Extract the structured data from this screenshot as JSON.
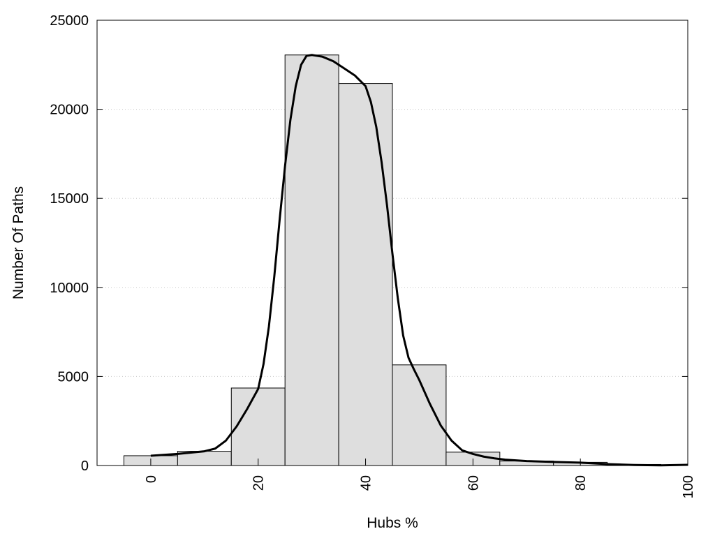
{
  "chart_data": {
    "type": "bar",
    "xlabel": "Hubs %",
    "ylabel": "Number Of Paths",
    "xlim": [
      -10,
      100
    ],
    "ylim": [
      0,
      25000
    ],
    "x_ticks": [
      0,
      20,
      40,
      60,
      80,
      100
    ],
    "y_ticks": [
      0,
      5000,
      10000,
      15000,
      20000,
      25000
    ],
    "grid": "horizontal dotted",
    "bins": [
      {
        "start": -5,
        "end": 5,
        "value": 550
      },
      {
        "start": 5,
        "end": 15,
        "value": 800
      },
      {
        "start": 15,
        "end": 25,
        "value": 4350
      },
      {
        "start": 25,
        "end": 35,
        "value": 23050
      },
      {
        "start": 35,
        "end": 45,
        "value": 21450
      },
      {
        "start": 45,
        "end": 55,
        "value": 5650
      },
      {
        "start": 55,
        "end": 65,
        "value": 750
      },
      {
        "start": 65,
        "end": 75,
        "value": 250
      },
      {
        "start": 75,
        "end": 85,
        "value": 180
      },
      {
        "start": 85,
        "end": 95,
        "value": 60
      },
      {
        "start": 95,
        "end": 105,
        "value": 30
      }
    ],
    "curve": {
      "x": [
        0,
        5,
        10,
        12,
        14,
        16,
        18,
        20,
        21,
        22,
        23,
        24,
        25,
        26,
        27,
        28,
        29,
        30,
        32,
        34,
        36,
        38,
        40,
        41,
        42,
        43,
        44,
        45,
        46,
        47,
        48,
        49,
        50,
        52,
        54,
        56,
        58,
        60,
        62,
        64,
        66,
        70,
        75,
        80,
        85,
        90,
        95,
        100
      ],
      "y": [
        550,
        650,
        800,
        950,
        1400,
        2200,
        3200,
        4300,
        5700,
        7800,
        10600,
        13800,
        16800,
        19400,
        21300,
        22500,
        23000,
        23050,
        22950,
        22700,
        22300,
        21900,
        21300,
        20400,
        19000,
        17000,
        14600,
        11900,
        9400,
        7300,
        6050,
        5400,
        4800,
        3450,
        2250,
        1400,
        850,
        650,
        500,
        400,
        330,
        250,
        200,
        160,
        80,
        30,
        10,
        40
      ]
    }
  }
}
